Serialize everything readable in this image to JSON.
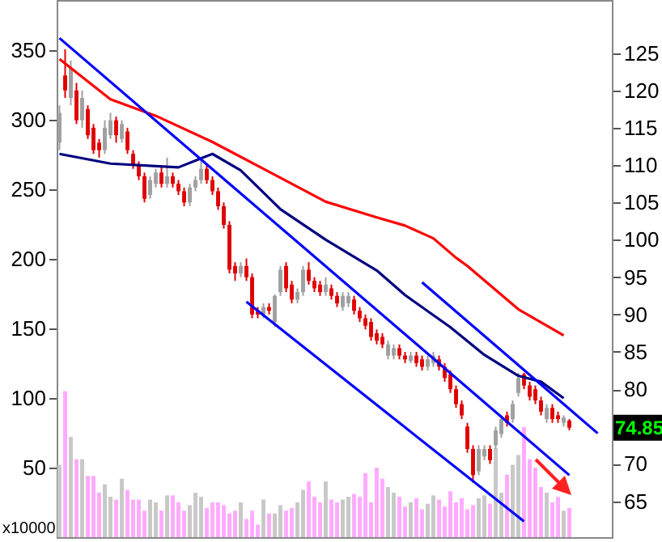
{
  "chart_data": {
    "type": "candlestick",
    "ylabel": "x10000",
    "categories": [
      null,
      null,
      null,
      null,
      null,
      null,
      null,
      null,
      null,
      null,
      null,
      null,
      null,
      null,
      null,
      null,
      null,
      null,
      null,
      null,
      null,
      null,
      null,
      null,
      null,
      null,
      null,
      null,
      null,
      null,
      null,
      null,
      null,
      null,
      null,
      null,
      null,
      null,
      null,
      null,
      null,
      null,
      null,
      null,
      null,
      null,
      null,
      null,
      null,
      null,
      null,
      null,
      null,
      null,
      null,
      null,
      null,
      null,
      null,
      null,
      null,
      null,
      null,
      null,
      null,
      null,
      null,
      null,
      null,
      null,
      null,
      null,
      null,
      null,
      null,
      null,
      null,
      null,
      null,
      null,
      null,
      null,
      null,
      null,
      null,
      null,
      null,
      null,
      null,
      null,
      null,
      null,
      null,
      null,
      null,
      null,
      null,
      null
    ],
    "ylim": [
      0,
      386
    ],
    "yticks": [
      50,
      100,
      150,
      200,
      250,
      300,
      350
    ],
    "y2lim": [
      60.2,
      132.1
    ],
    "y2ticks": [
      65,
      70,
      80,
      85,
      90,
      95,
      100,
      105,
      110,
      115,
      120,
      125
    ],
    "annotations": [
      "74.85"
    ],
    "series": [
      {
        "type": "bar",
        "axis": "y",
        "values": [
          52,
          105,
          72,
          56,
          56,
          44,
          44,
          32,
          38,
          29,
          27,
          42,
          34,
          27,
          27,
          19,
          27,
          25,
          19,
          30,
          30,
          25,
          19,
          23,
          32,
          29,
          21,
          25,
          25,
          23,
          17,
          19,
          25,
          13,
          19,
          9,
          27,
          17,
          17,
          23,
          19,
          21,
          25,
          34,
          40,
          29,
          25,
          40,
          27,
          25,
          27,
          29,
          31,
          29,
          46,
          25,
          50,
          42,
          36,
          32,
          29,
          22,
          25,
          28,
          20,
          24,
          30,
          27,
          22,
          33,
          25,
          28,
          20,
          23,
          28,
          30,
          24,
          64,
          32,
          45,
          52,
          59,
          79,
          56,
          50,
          36,
          32,
          25,
          29,
          19,
          21,
          null,
          null,
          null,
          null,
          null,
          null,
          null
        ],
        "colors": [
          "#c8c8c8",
          "#ffaaff",
          "#c8c8c8",
          "#ffaaff",
          "#c8c8c8",
          "#ffaaff",
          "#ffaaff",
          "#ffaaff",
          "#c8c8c8",
          "#c8c8c8",
          "#ffaaff",
          "#c8c8c8",
          "#ffaaff",
          "#ffaaff",
          "#ffaaff",
          "#ffaaff",
          "#c8c8c8",
          "#c8c8c8",
          "#ffaaff",
          "#c8c8c8",
          "#ffaaff",
          "#ffaaff",
          "#ffaaff",
          "#c8c8c8",
          "#c8c8c8",
          "#c8c8c8",
          "#ffaaff",
          "#ffaaff",
          "#ffaaff",
          "#ffaaff",
          "#ffaaff",
          "#ffaaff",
          "#c8c8c8",
          "#ffaaff",
          "#ffaaff",
          "#ffaaff",
          "#c8c8c8",
          "#ffaaff",
          "#c8c8c8",
          "#c8c8c8",
          "#ffaaff",
          "#ffaaff",
          "#c8c8c8",
          "#c8c8c8",
          "#ffaaff",
          "#ffaaff",
          "#ffaaff",
          "#c8c8c8",
          "#ffaaff",
          "#ffaaff",
          "#c8c8c8",
          "#c8c8c8",
          "#ffaaff",
          "#ffaaff",
          "#ffaaff",
          "#ffaaff",
          "#ffaaff",
          "#ffaaff",
          "#c8c8c8",
          "#c8c8c8",
          "#ffaaff",
          "#ffaaff",
          "#c8c8c8",
          "#ffaaff",
          "#ffaaff",
          "#c8c8c8",
          "#c8c8c8",
          "#ffaaff",
          "#ffaaff",
          "#ffaaff",
          "#ffaaff",
          "#ffaaff",
          "#ffaaff",
          "#ffaaff",
          "#c8c8c8",
          "#c8c8c8",
          "#ffaaff",
          "#c8c8c8",
          "#c8c8c8",
          "#ffaaff",
          "#c8c8c8",
          "#c8c8c8",
          "#ffaaff",
          "#ffaaff",
          "#ffaaff",
          "#ffaaff",
          "#c8c8c8",
          "#ffaaff",
          "#ffaaff",
          "#c8c8c8",
          "#ffaaff",
          null,
          null,
          null,
          null,
          null,
          null,
          null
        ]
      },
      {
        "axis": "y2",
        "ohlc": [
          [
            113,
            118,
            112,
            117
          ],
          [
            122,
            125.5,
            119,
            120
          ],
          [
            119,
            124,
            118,
            123
          ],
          [
            120,
            121,
            115.5,
            116
          ],
          [
            116,
            120,
            115,
            119
          ],
          [
            117.5,
            118,
            113.5,
            114
          ],
          [
            115,
            115.5,
            111.5,
            112
          ],
          [
            113,
            113.5,
            111,
            112
          ],
          [
            112,
            116,
            111.5,
            115
          ],
          [
            114,
            117,
            113.5,
            116
          ],
          [
            116,
            116.5,
            113,
            114
          ],
          [
            113.5,
            116,
            113,
            115.5
          ],
          [
            114.5,
            115,
            111.5,
            112
          ],
          [
            111.5,
            112,
            109.5,
            110
          ],
          [
            110,
            110.5,
            108,
            108.5
          ],
          [
            108.5,
            109,
            105,
            105.5
          ],
          [
            106,
            108.5,
            105.5,
            108
          ],
          [
            107.5,
            109.5,
            107,
            109
          ],
          [
            109,
            110,
            107,
            107.5
          ],
          [
            107.5,
            111,
            107,
            108.5
          ],
          [
            108.5,
            109,
            107,
            107.5
          ],
          [
            107.5,
            108,
            106,
            106.5
          ],
          [
            106.5,
            107,
            104.5,
            105
          ],
          [
            105,
            107.5,
            104.5,
            107
          ],
          [
            107,
            108.5,
            106.5,
            108
          ],
          [
            108,
            111,
            107.5,
            109.5
          ],
          [
            109.5,
            110,
            107.5,
            108
          ],
          [
            108,
            108.5,
            106,
            106.5
          ],
          [
            106.5,
            107,
            104,
            104.5
          ],
          [
            104.5,
            105,
            101.5,
            102
          ],
          [
            102,
            102.5,
            95.5,
            96
          ],
          [
            96.5,
            97,
            94.5,
            95.5
          ],
          [
            95.5,
            97,
            95,
            96.5
          ],
          [
            96.5,
            97.5,
            94.5,
            95
          ],
          [
            95,
            95.5,
            89.5,
            90
          ],
          [
            90.5,
            91,
            89.5,
            90
          ],
          [
            90,
            91.5,
            89.5,
            91
          ],
          [
            91,
            91.5,
            90,
            90.5
          ],
          [
            89,
            92.7,
            88.3,
            92.5
          ],
          [
            93,
            96.5,
            92.5,
            96
          ],
          [
            96.5,
            97,
            93,
            93.5
          ],
          [
            94,
            94.5,
            91.5,
            92
          ],
          [
            92,
            93.5,
            91.5,
            93
          ],
          [
            93,
            96.5,
            92.5,
            96
          ],
          [
            96,
            97,
            94,
            94.5
          ],
          [
            94.5,
            95,
            93,
            93.5
          ],
          [
            94,
            94.5,
            92.5,
            93
          ],
          [
            93,
            95,
            92.5,
            94
          ],
          [
            93.5,
            94,
            92,
            92.5
          ],
          [
            92.5,
            93,
            91,
            91.5
          ],
          [
            91,
            93,
            90.5,
            92.5
          ],
          [
            91.5,
            93,
            91,
            92.5
          ],
          [
            92,
            92.5,
            90,
            90.5
          ],
          [
            90.5,
            91,
            89,
            89.5
          ],
          [
            89.5,
            90,
            88,
            88.5
          ],
          [
            89,
            89.5,
            86.5,
            87
          ],
          [
            87.5,
            88,
            86,
            86.5
          ],
          [
            87,
            87.5,
            85.5,
            86
          ],
          [
            84.5,
            86.5,
            84,
            86
          ],
          [
            84.5,
            86,
            84,
            85.5
          ],
          [
            85.5,
            86,
            84,
            84.5
          ],
          [
            84.5,
            85,
            83.5,
            84
          ],
          [
            83.8,
            85,
            83.5,
            84.5
          ],
          [
            84.5,
            85,
            83,
            83.5
          ],
          [
            84,
            84.5,
            82.5,
            83
          ],
          [
            83,
            84.5,
            82.5,
            84
          ],
          [
            83.5,
            85,
            83,
            84.5
          ],
          [
            84,
            84.5,
            82.5,
            83
          ],
          [
            83,
            83.5,
            81,
            81.5
          ],
          [
            82,
            82.5,
            79.5,
            80
          ],
          [
            80,
            80.5,
            77.5,
            78
          ],
          [
            78,
            78.5,
            76,
            76.5
          ],
          [
            75,
            75.5,
            71.5,
            72
          ],
          [
            72,
            72.5,
            67.5,
            68.5
          ],
          [
            69,
            72.5,
            68.5,
            72
          ],
          [
            71,
            72.5,
            70.5,
            72
          ],
          [
            72,
            72.5,
            70,
            70.5
          ],
          [
            72.5,
            75,
            72,
            74.5
          ],
          [
            74,
            76.5,
            73.5,
            76
          ],
          [
            76.5,
            77,
            75,
            75.5
          ],
          [
            76,
            78.5,
            75.5,
            78
          ],
          [
            79.5,
            82.2,
            79,
            81.5
          ],
          [
            82,
            82.2,
            80,
            80.5
          ],
          [
            80.5,
            81,
            78.5,
            79
          ],
          [
            80,
            80.5,
            78,
            78.5
          ],
          [
            78.5,
            79,
            76.5,
            77
          ],
          [
            76,
            78,
            75.5,
            77.5
          ],
          [
            77.5,
            78,
            75.5,
            76
          ],
          [
            76.5,
            77,
            75.5,
            76
          ],
          [
            75.5,
            76.5,
            75,
            76.2
          ],
          [
            75.8,
            76,
            74.5,
            74.85
          ],
          null,
          null,
          null,
          null,
          null,
          null,
          null
        ],
        "colors": [
          "#a0a0a0",
          "#e00000",
          "#a0a0a0",
          "#e00000",
          "#a0a0a0",
          "#e00000",
          "#e00000",
          "#e00000",
          "#a0a0a0",
          "#a0a0a0",
          "#e00000",
          "#a0a0a0",
          "#e00000",
          "#e00000",
          "#e00000",
          "#e00000",
          "#a0a0a0",
          "#a0a0a0",
          "#e00000",
          "#a0a0a0",
          "#e00000",
          "#e00000",
          "#e00000",
          "#a0a0a0",
          "#a0a0a0",
          "#a0a0a0",
          "#e00000",
          "#e00000",
          "#e00000",
          "#e00000",
          "#e00000",
          "#e00000",
          "#a0a0a0",
          "#e00000",
          "#e00000",
          "#e00000",
          "#a0a0a0",
          "#e00000",
          "#a0a0a0",
          "#a0a0a0",
          "#e00000",
          "#e00000",
          "#a0a0a0",
          "#a0a0a0",
          "#e00000",
          "#e00000",
          "#e00000",
          "#a0a0a0",
          "#e00000",
          "#e00000",
          "#a0a0a0",
          "#a0a0a0",
          "#e00000",
          "#e00000",
          "#e00000",
          "#e00000",
          "#e00000",
          "#e00000",
          "#a0a0a0",
          "#a0a0a0",
          "#e00000",
          "#e00000",
          "#a0a0a0",
          "#e00000",
          "#e00000",
          "#a0a0a0",
          "#a0a0a0",
          "#e00000",
          "#e00000",
          "#e00000",
          "#e00000",
          "#e00000",
          "#e00000",
          "#e00000",
          "#a0a0a0",
          "#a0a0a0",
          "#e00000",
          "#a0a0a0",
          "#a0a0a0",
          "#e00000",
          "#a0a0a0",
          "#a0a0a0",
          "#e00000",
          "#e00000",
          "#e00000",
          "#e00000",
          "#a0a0a0",
          "#e00000",
          "#e00000",
          "#a0a0a0",
          "#e00000",
          null,
          null,
          null,
          null,
          null,
          null,
          null
        ]
      },
      {
        "type": "line",
        "axis": "y2",
        "color": "#ff0000",
        "values": [
          124.2,
          null,
          null,
          null,
          null,
          null,
          null,
          null,
          null,
          118.8,
          null,
          null,
          null,
          null,
          null,
          null,
          null,
          116.6,
          null,
          null,
          null,
          null,
          null,
          null,
          null,
          null,
          null,
          113.1,
          null,
          null,
          null,
          null,
          null,
          null,
          null,
          null,
          null,
          109.1,
          null,
          null,
          null,
          null,
          null,
          null,
          null,
          null,
          null,
          105.1,
          null,
          null,
          null,
          null,
          null,
          null,
          null,
          null,
          103.0,
          null,
          null,
          null,
          null,
          101.9,
          null,
          null,
          null,
          null,
          100.2,
          null,
          null,
          null,
          97.6,
          null,
          96.5,
          null,
          null,
          null,
          null,
          null,
          null,
          null,
          null,
          90.7,
          null,
          null,
          null,
          null,
          null,
          null,
          null,
          87.2,
          null,
          null,
          null,
          null,
          null,
          null,
          null,
          null
        ]
      },
      {
        "type": "line",
        "axis": "y2",
        "color": "#000080",
        "values": [
          111.5,
          null,
          null,
          null,
          null,
          null,
          null,
          null,
          null,
          110.2,
          null,
          null,
          null,
          null,
          null,
          null,
          null,
          null,
          null,
          null,
          null,
          109.7,
          null,
          null,
          null,
          null,
          null,
          111.5,
          null,
          null,
          null,
          null,
          109.3,
          null,
          null,
          null,
          null,
          null,
          null,
          104.1,
          null,
          null,
          null,
          null,
          null,
          null,
          null,
          100.0,
          null,
          null,
          null,
          null,
          null,
          null,
          null,
          null,
          95.9,
          null,
          null,
          null,
          null,
          92.6,
          null,
          null,
          null,
          null,
          null,
          null,
          null,
          88.3,
          null,
          null,
          null,
          null,
          null,
          84.6,
          null,
          null,
          null,
          null,
          null,
          81.8,
          null,
          null,
          null,
          81.0,
          null,
          null,
          null,
          78.8,
          null,
          null,
          null,
          null,
          null,
          null,
          null,
          null
        ]
      },
      {
        "type": "line",
        "axis": "y2",
        "color": "#0000ff",
        "values": [
          127.0,
          null,
          null,
          null,
          null,
          null,
          null,
          null,
          null,
          null,
          null,
          null,
          null,
          null,
          null,
          null,
          null,
          null,
          null,
          null,
          null,
          null,
          null,
          null,
          null,
          null,
          null,
          null,
          null,
          null,
          null,
          null,
          null,
          null,
          null,
          null,
          null,
          null,
          null,
          null,
          null,
          null,
          null,
          null,
          null,
          null,
          null,
          null,
          null,
          null,
          null,
          null,
          null,
          null,
          null,
          null,
          null,
          null,
          null,
          null,
          null,
          null,
          null,
          null,
          null,
          null,
          null,
          null,
          null,
          null,
          null,
          null,
          null,
          null,
          null,
          null,
          null,
          null,
          null,
          null,
          null,
          null,
          null,
          null,
          null,
          null,
          null,
          null,
          null,
          null,
          68.5,
          null,
          null,
          null,
          null,
          null,
          null,
          null
        ]
      },
      {
        "type": "line",
        "axis": "y2",
        "color": "#0000ff",
        "values": [
          null,
          null,
          null,
          null,
          null,
          null,
          null,
          null,
          null,
          null,
          null,
          null,
          null,
          null,
          null,
          null,
          null,
          null,
          null,
          null,
          null,
          null,
          null,
          null,
          null,
          null,
          null,
          null,
          null,
          null,
          null,
          null,
          null,
          91.7,
          null,
          null,
          null,
          null,
          null,
          null,
          null,
          null,
          null,
          null,
          null,
          null,
          null,
          null,
          null,
          null,
          null,
          null,
          null,
          null,
          null,
          null,
          null,
          null,
          null,
          null,
          null,
          null,
          null,
          null,
          null,
          null,
          null,
          null,
          null,
          null,
          null,
          null,
          null,
          null,
          null,
          null,
          null,
          null,
          null,
          null,
          null,
          null,
          62.3,
          null,
          null,
          null,
          null,
          null,
          null,
          null,
          null,
          null,
          null,
          null,
          null,
          null,
          null,
          null
        ]
      },
      {
        "type": "line",
        "axis": "y2",
        "color": "#0000ff",
        "values": [
          null,
          null,
          null,
          null,
          null,
          null,
          null,
          null,
          null,
          null,
          null,
          null,
          null,
          null,
          null,
          null,
          null,
          null,
          null,
          null,
          null,
          null,
          null,
          null,
          null,
          null,
          null,
          null,
          null,
          null,
          null,
          null,
          null,
          null,
          null,
          null,
          null,
          null,
          null,
          null,
          null,
          null,
          null,
          null,
          null,
          null,
          null,
          null,
          null,
          null,
          null,
          null,
          null,
          null,
          null,
          null,
          null,
          null,
          null,
          null,
          null,
          null,
          null,
          null,
          94.3,
          null,
          null,
          null,
          null,
          null,
          null,
          null,
          null,
          null,
          null,
          null,
          null,
          null,
          null,
          null,
          null,
          null,
          null,
          null,
          null,
          null,
          null,
          null,
          null,
          null,
          null,
          null,
          null,
          null,
          null,
          74.1,
          null,
          null
        ]
      }
    ]
  }
}
